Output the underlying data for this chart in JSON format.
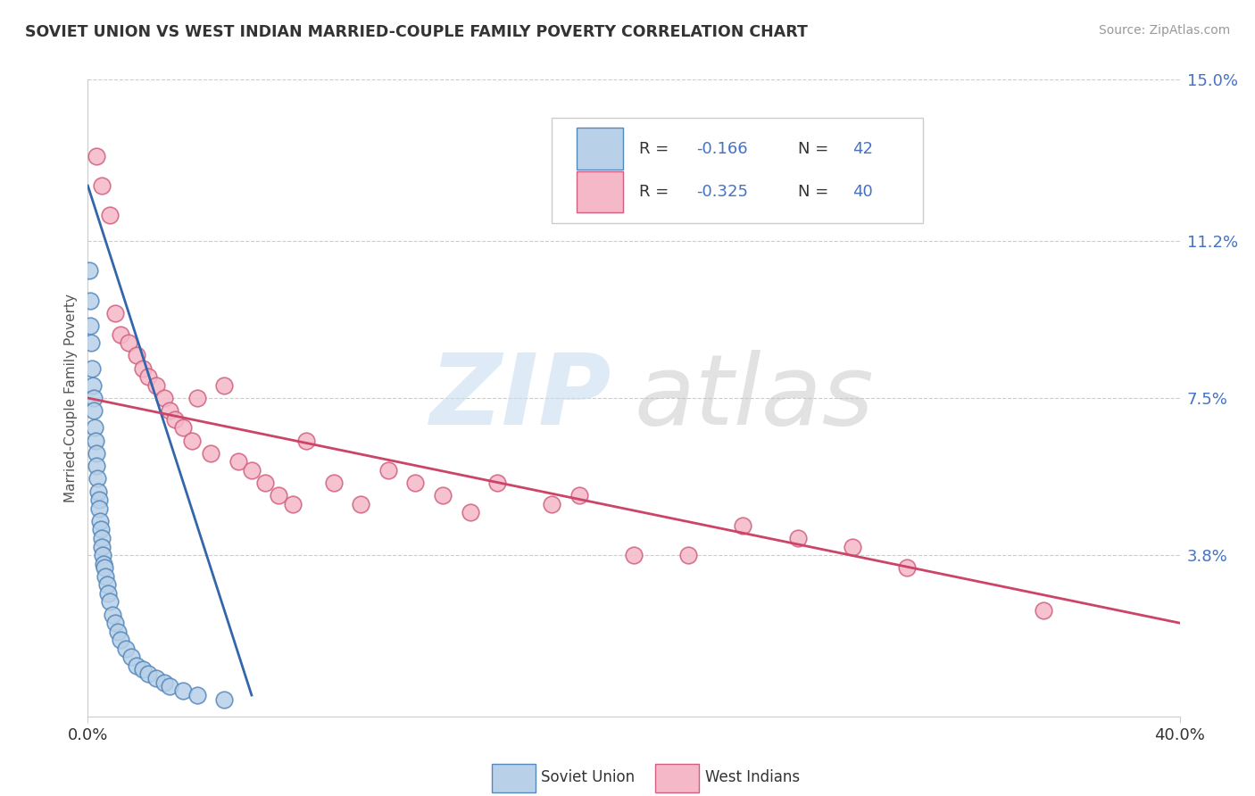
{
  "title": "SOVIET UNION VS WEST INDIAN MARRIED-COUPLE FAMILY POVERTY CORRELATION CHART",
  "source": "Source: ZipAtlas.com",
  "ylabel": "Married-Couple Family Poverty",
  "xlim": [
    0,
    40
  ],
  "ylim": [
    0,
    15
  ],
  "x_tick_labels": [
    "0.0%",
    "40.0%"
  ],
  "y_tick_labels": [
    "3.8%",
    "7.5%",
    "11.2%",
    "15.0%"
  ],
  "y_tick_values": [
    3.8,
    7.5,
    11.2,
    15.0
  ],
  "legend_r1": "-0.166",
  "legend_n1": "42",
  "legend_r2": "-0.325",
  "legend_n2": "40",
  "legend_label1": "Soviet Union",
  "legend_label2": "West Indians",
  "blue_fill": "#b8d0e8",
  "blue_edge": "#5588bb",
  "pink_fill": "#f5b8c8",
  "pink_edge": "#d06080",
  "blue_line_color": "#3366aa",
  "pink_line_color": "#cc4466",
  "text_color": "#4472c4",
  "background_color": "#ffffff",
  "grid_color": "#cccccc",
  "soviet_x": [
    0.05,
    0.08,
    0.1,
    0.12,
    0.15,
    0.18,
    0.2,
    0.22,
    0.25,
    0.28,
    0.3,
    0.32,
    0.35,
    0.38,
    0.4,
    0.42,
    0.45,
    0.48,
    0.5,
    0.52,
    0.55,
    0.58,
    0.6,
    0.65,
    0.7,
    0.75,
    0.8,
    0.9,
    1.0,
    1.1,
    1.2,
    1.4,
    1.6,
    1.8,
    2.0,
    2.2,
    2.5,
    2.8,
    3.0,
    3.5,
    4.0,
    5.0
  ],
  "soviet_y": [
    10.5,
    9.8,
    9.2,
    8.8,
    8.2,
    7.8,
    7.5,
    7.2,
    6.8,
    6.5,
    6.2,
    5.9,
    5.6,
    5.3,
    5.1,
    4.9,
    4.6,
    4.4,
    4.2,
    4.0,
    3.8,
    3.6,
    3.5,
    3.3,
    3.1,
    2.9,
    2.7,
    2.4,
    2.2,
    2.0,
    1.8,
    1.6,
    1.4,
    1.2,
    1.1,
    1.0,
    0.9,
    0.8,
    0.7,
    0.6,
    0.5,
    0.4
  ],
  "westindian_x": [
    0.3,
    0.5,
    0.8,
    1.0,
    1.2,
    1.5,
    1.8,
    2.0,
    2.2,
    2.5,
    2.8,
    3.0,
    3.2,
    3.5,
    3.8,
    4.0,
    4.5,
    5.0,
    5.5,
    6.0,
    6.5,
    7.0,
    7.5,
    8.0,
    9.0,
    10.0,
    11.0,
    12.0,
    13.0,
    14.0,
    15.0,
    17.0,
    18.0,
    20.0,
    22.0,
    24.0,
    26.0,
    28.0,
    30.0,
    35.0
  ],
  "westindian_y": [
    13.2,
    12.5,
    11.8,
    9.5,
    9.0,
    8.8,
    8.5,
    8.2,
    8.0,
    7.8,
    7.5,
    7.2,
    7.0,
    6.8,
    6.5,
    7.5,
    6.2,
    7.8,
    6.0,
    5.8,
    5.5,
    5.2,
    5.0,
    6.5,
    5.5,
    5.0,
    5.8,
    5.5,
    5.2,
    4.8,
    5.5,
    5.0,
    5.2,
    3.8,
    3.8,
    4.5,
    4.2,
    4.0,
    3.5,
    2.5
  ],
  "blue_trend_x0": 0.0,
  "blue_trend_y0": 12.5,
  "blue_trend_x1": 6.0,
  "blue_trend_y1": 0.5,
  "pink_trend_x0": 0.0,
  "pink_trend_y0": 7.5,
  "pink_trend_x1": 40.0,
  "pink_trend_y1": 2.2
}
